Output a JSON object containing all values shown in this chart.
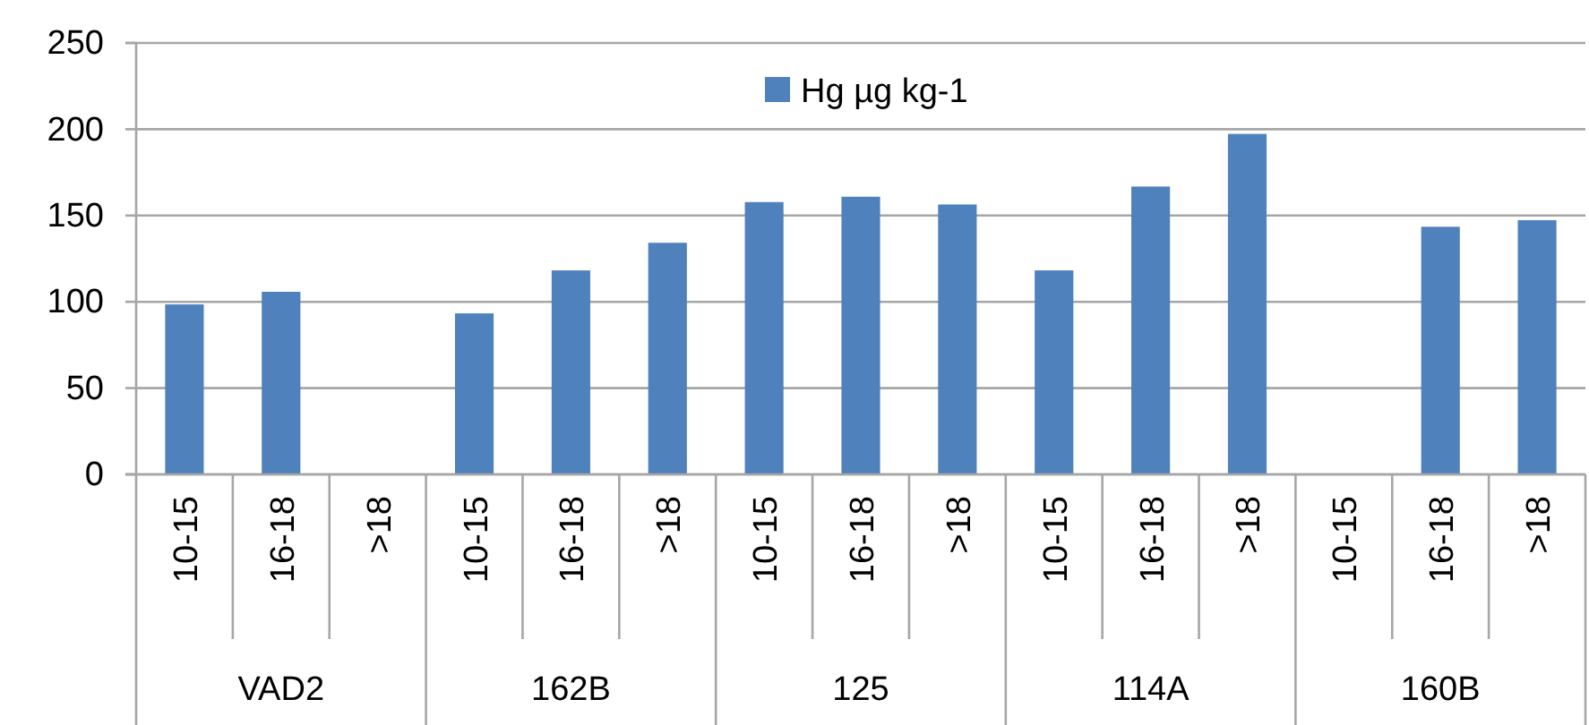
{
  "chart_data": {
    "type": "bar",
    "categories": [
      "10-15",
      "16-18",
      ">18",
      "10-15",
      "16-18",
      ">18",
      "10-15",
      "16-18",
      ">18",
      "10-15",
      "16-18",
      ">18",
      "10-15",
      "16-18",
      ">18"
    ],
    "series": [
      {
        "name": "Hg µg kg-1",
        "color": "#4f81bd",
        "values": [
          98.5,
          105.8,
          null,
          93.3,
          118.2,
          134.2,
          157.8,
          160.9,
          156.4,
          118.2,
          166.8,
          197.3,
          null,
          143.5,
          147.3
        ]
      }
    ],
    "annotations": [
      "VAD2",
      "162B",
      "125",
      "114A",
      "160B"
    ],
    "ylim": [
      0,
      250
    ],
    "yticks": [
      0,
      50,
      100,
      150,
      200,
      250
    ],
    "grid": "y",
    "legend": "top"
  }
}
